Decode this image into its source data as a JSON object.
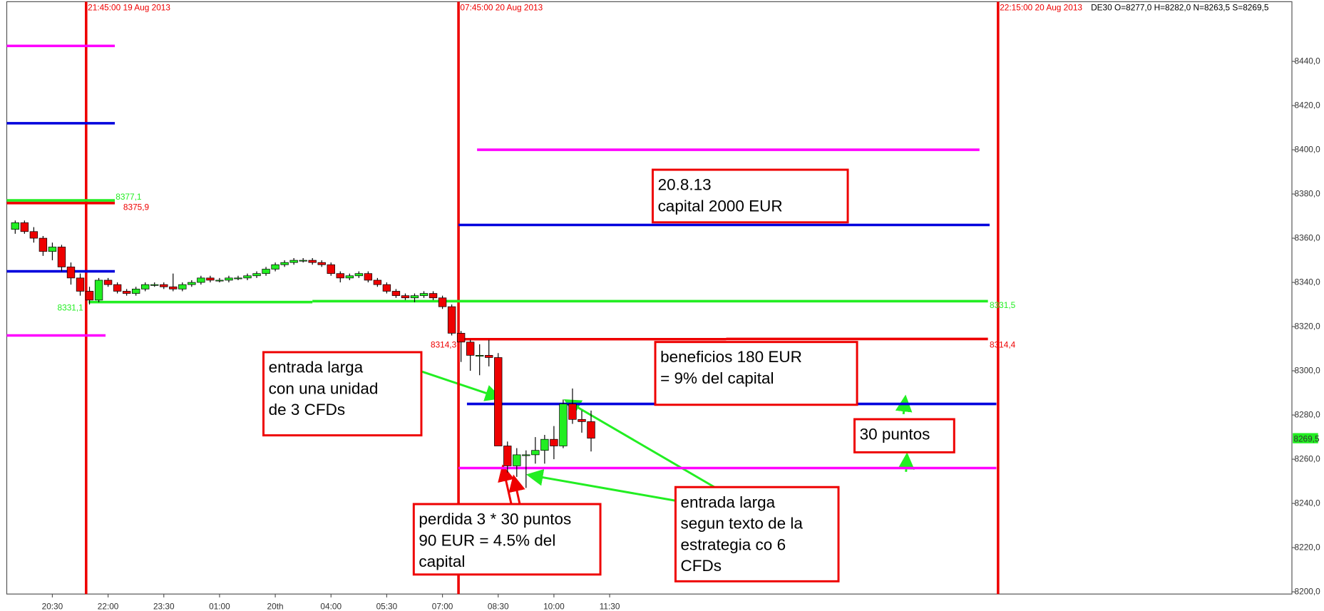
{
  "chart_data": {
    "type": "candlestick",
    "header": "DE30 O=8277,0 H=8282,0 N=8263,5 S=8269,5",
    "categories": [
      null,
      null,
      null,
      null,
      "20:30",
      null,
      null,
      null,
      null,
      null,
      "22:00",
      null,
      null,
      null,
      null,
      null,
      "23:30",
      null,
      null,
      null,
      null,
      null,
      "01:00",
      null,
      null,
      null,
      null,
      null,
      "20th",
      null,
      null,
      null,
      null,
      null,
      "04:00",
      null,
      null,
      null,
      null,
      null,
      "05:30",
      null,
      null,
      null,
      null,
      null,
      "07:00",
      null,
      null,
      null,
      null,
      null,
      "08:30",
      null,
      null,
      null,
      null,
      null,
      "10:00",
      null,
      null,
      null,
      null,
      null,
      "11:30"
    ],
    "open": [
      8364,
      8367,
      8363,
      8360,
      8354,
      8356,
      8347,
      8342,
      8336,
      8332,
      8341,
      8339,
      8336,
      8335,
      8337,
      8339,
      8339,
      8338,
      8337,
      8339,
      8340,
      8342,
      8341,
      8341,
      8342,
      8342,
      8343,
      8344,
      8346,
      8348,
      8349,
      8350,
      8350,
      8349,
      8348,
      8344,
      8342,
      8343,
      8344,
      8341,
      8339,
      8336,
      8334,
      8333,
      8334,
      8335,
      8333,
      8329,
      8317,
      8313,
      8307,
      8307,
      8306,
      8266,
      8257,
      8262,
      8262,
      8264,
      8269,
      8266,
      8285,
      8278,
      8277,
      null,
      null
    ],
    "high": [
      8368,
      8368,
      8365,
      8361,
      8358,
      8357,
      8349,
      8344,
      8338,
      8342,
      8342,
      8340,
      8337,
      8338,
      8340,
      8340,
      8340,
      8344,
      8340,
      8341,
      8343,
      8343,
      8342,
      8343,
      8343,
      8344,
      8345,
      8347,
      8349,
      8350,
      8351,
      8351,
      8351,
      8350,
      8349,
      8345,
      8344,
      8345,
      8345,
      8342,
      8340,
      8337,
      8335,
      8335,
      8336,
      8336,
      8334,
      8330,
      8318,
      8314,
      8312,
      8314,
      8308,
      8268,
      8265,
      8264,
      8270,
      8271,
      8275,
      8287,
      8292,
      8282,
      8282,
      null,
      null
    ],
    "low": [
      8362,
      8362,
      8358,
      8352,
      8350,
      8345,
      8339,
      8334,
      8330,
      8331,
      8338,
      8335,
      8334,
      8334,
      8336,
      8338,
      8337,
      8336,
      8336,
      8338,
      8339,
      8340,
      8340,
      8340,
      8341,
      8341,
      8342,
      8343,
      8345,
      8347,
      8348,
      8349,
      8348,
      8347,
      8343,
      8340,
      8341,
      8342,
      8340,
      8338,
      8335,
      8333,
      8332,
      8331,
      8333,
      8332,
      8328,
      8316,
      8304,
      8300,
      8298,
      8302,
      8266,
      8254,
      8252,
      8247,
      8258,
      8258,
      8260,
      8265,
      8276,
      8272,
      8263.5,
      null,
      null
    ],
    "close": [
      8367,
      8363,
      8360,
      8354,
      8356,
      8347,
      8342,
      8336,
      8332,
      8341,
      8339,
      8336,
      8335,
      8337,
      8339,
      8339,
      8338,
      8337,
      8339,
      8340,
      8342,
      8341,
      8341,
      8342,
      8342,
      8343,
      8344,
      8346,
      8348,
      8349,
      8350,
      8350,
      8349,
      8348,
      8344,
      8342,
      8343,
      8344,
      8341,
      8339,
      8336,
      8334,
      8333,
      8334,
      8335,
      8333,
      8329,
      8317,
      8313,
      8307,
      8307,
      8306,
      8266,
      8257,
      8262,
      8262,
      8264,
      8269,
      8266,
      8285,
      8278,
      8277,
      8269.5,
      null,
      null
    ],
    "up_color": "#22ee22",
    "down_color": "#ee0000",
    "ylim": [
      8199,
      8467
    ],
    "yticks": [
      {
        "value": 8200,
        "label": "8200,0"
      },
      {
        "value": 8220,
        "label": "8220,0"
      },
      {
        "value": 8240,
        "label": "8240,0"
      },
      {
        "value": 8260,
        "label": "8260,0"
      },
      {
        "value": 8280,
        "label": "8280,0"
      },
      {
        "value": 8300,
        "label": "8300,0"
      },
      {
        "value": 8320,
        "label": "8320,0"
      },
      {
        "value": 8340,
        "label": "8340,0"
      },
      {
        "value": 8360,
        "label": "8360,0"
      },
      {
        "value": 8380,
        "label": "8380,0"
      },
      {
        "value": 8400,
        "label": "8400,0"
      },
      {
        "value": 8420,
        "label": "8420,0"
      },
      {
        "value": 8440,
        "label": "8440,0"
      }
    ],
    "last": {
      "value": 8269.5,
      "label": "8269,5"
    },
    "levels": [
      {
        "value": 8447,
        "color": "#ff00ff"
      },
      {
        "value": 8412,
        "color": "#0000dd"
      },
      {
        "value": 8377.1,
        "color": "#22ee22",
        "label": "8377,1"
      },
      {
        "value": 8375.9,
        "color": "#ee0000",
        "label": "8375,9"
      },
      {
        "value": 8345,
        "color": "#0000dd"
      },
      {
        "value": 8331.1,
        "color": "#22ee22",
        "label": "8331,1"
      },
      {
        "value": 8331.5,
        "color": "#22ee22",
        "label": "8331,5"
      },
      {
        "value": 8316,
        "color": "#ff00ff"
      },
      {
        "value": 8314.3,
        "color": "#ee0000",
        "label": "8314,3"
      },
      {
        "value": 8314.4,
        "color": "#ee0000",
        "label": "8314,4"
      },
      {
        "value": 8400,
        "color": "#ff00ff"
      },
      {
        "value": 8366,
        "color": "#0000dd"
      },
      {
        "value": 8285,
        "color": "#0000dd"
      },
      {
        "value": 8256,
        "color": "#ff00ff"
      }
    ],
    "vlines": [
      "21:45:00 19 Aug 2013",
      "07:45:00 20 Aug 2013",
      "22:15:00 20 Aug 2013"
    ],
    "annotations": [
      {
        "lines": [
          "20.8.13",
          "capital 2000 EUR"
        ]
      },
      {
        "lines": [
          "beneficios 180 EUR",
          "= 9% del capital"
        ]
      },
      {
        "lines": [
          "entrada larga",
          "con una unidad",
          "de 3 CFDs"
        ]
      },
      {
        "lines": [
          "30 puntos"
        ]
      },
      {
        "lines": [
          "perdida 3 * 30 puntos",
          "90 EUR = 4.5% del",
          "capital"
        ]
      },
      {
        "lines": [
          "entrada larga",
          "segun texto de la",
          "estrategia co 6",
          "CFDs"
        ]
      }
    ]
  }
}
